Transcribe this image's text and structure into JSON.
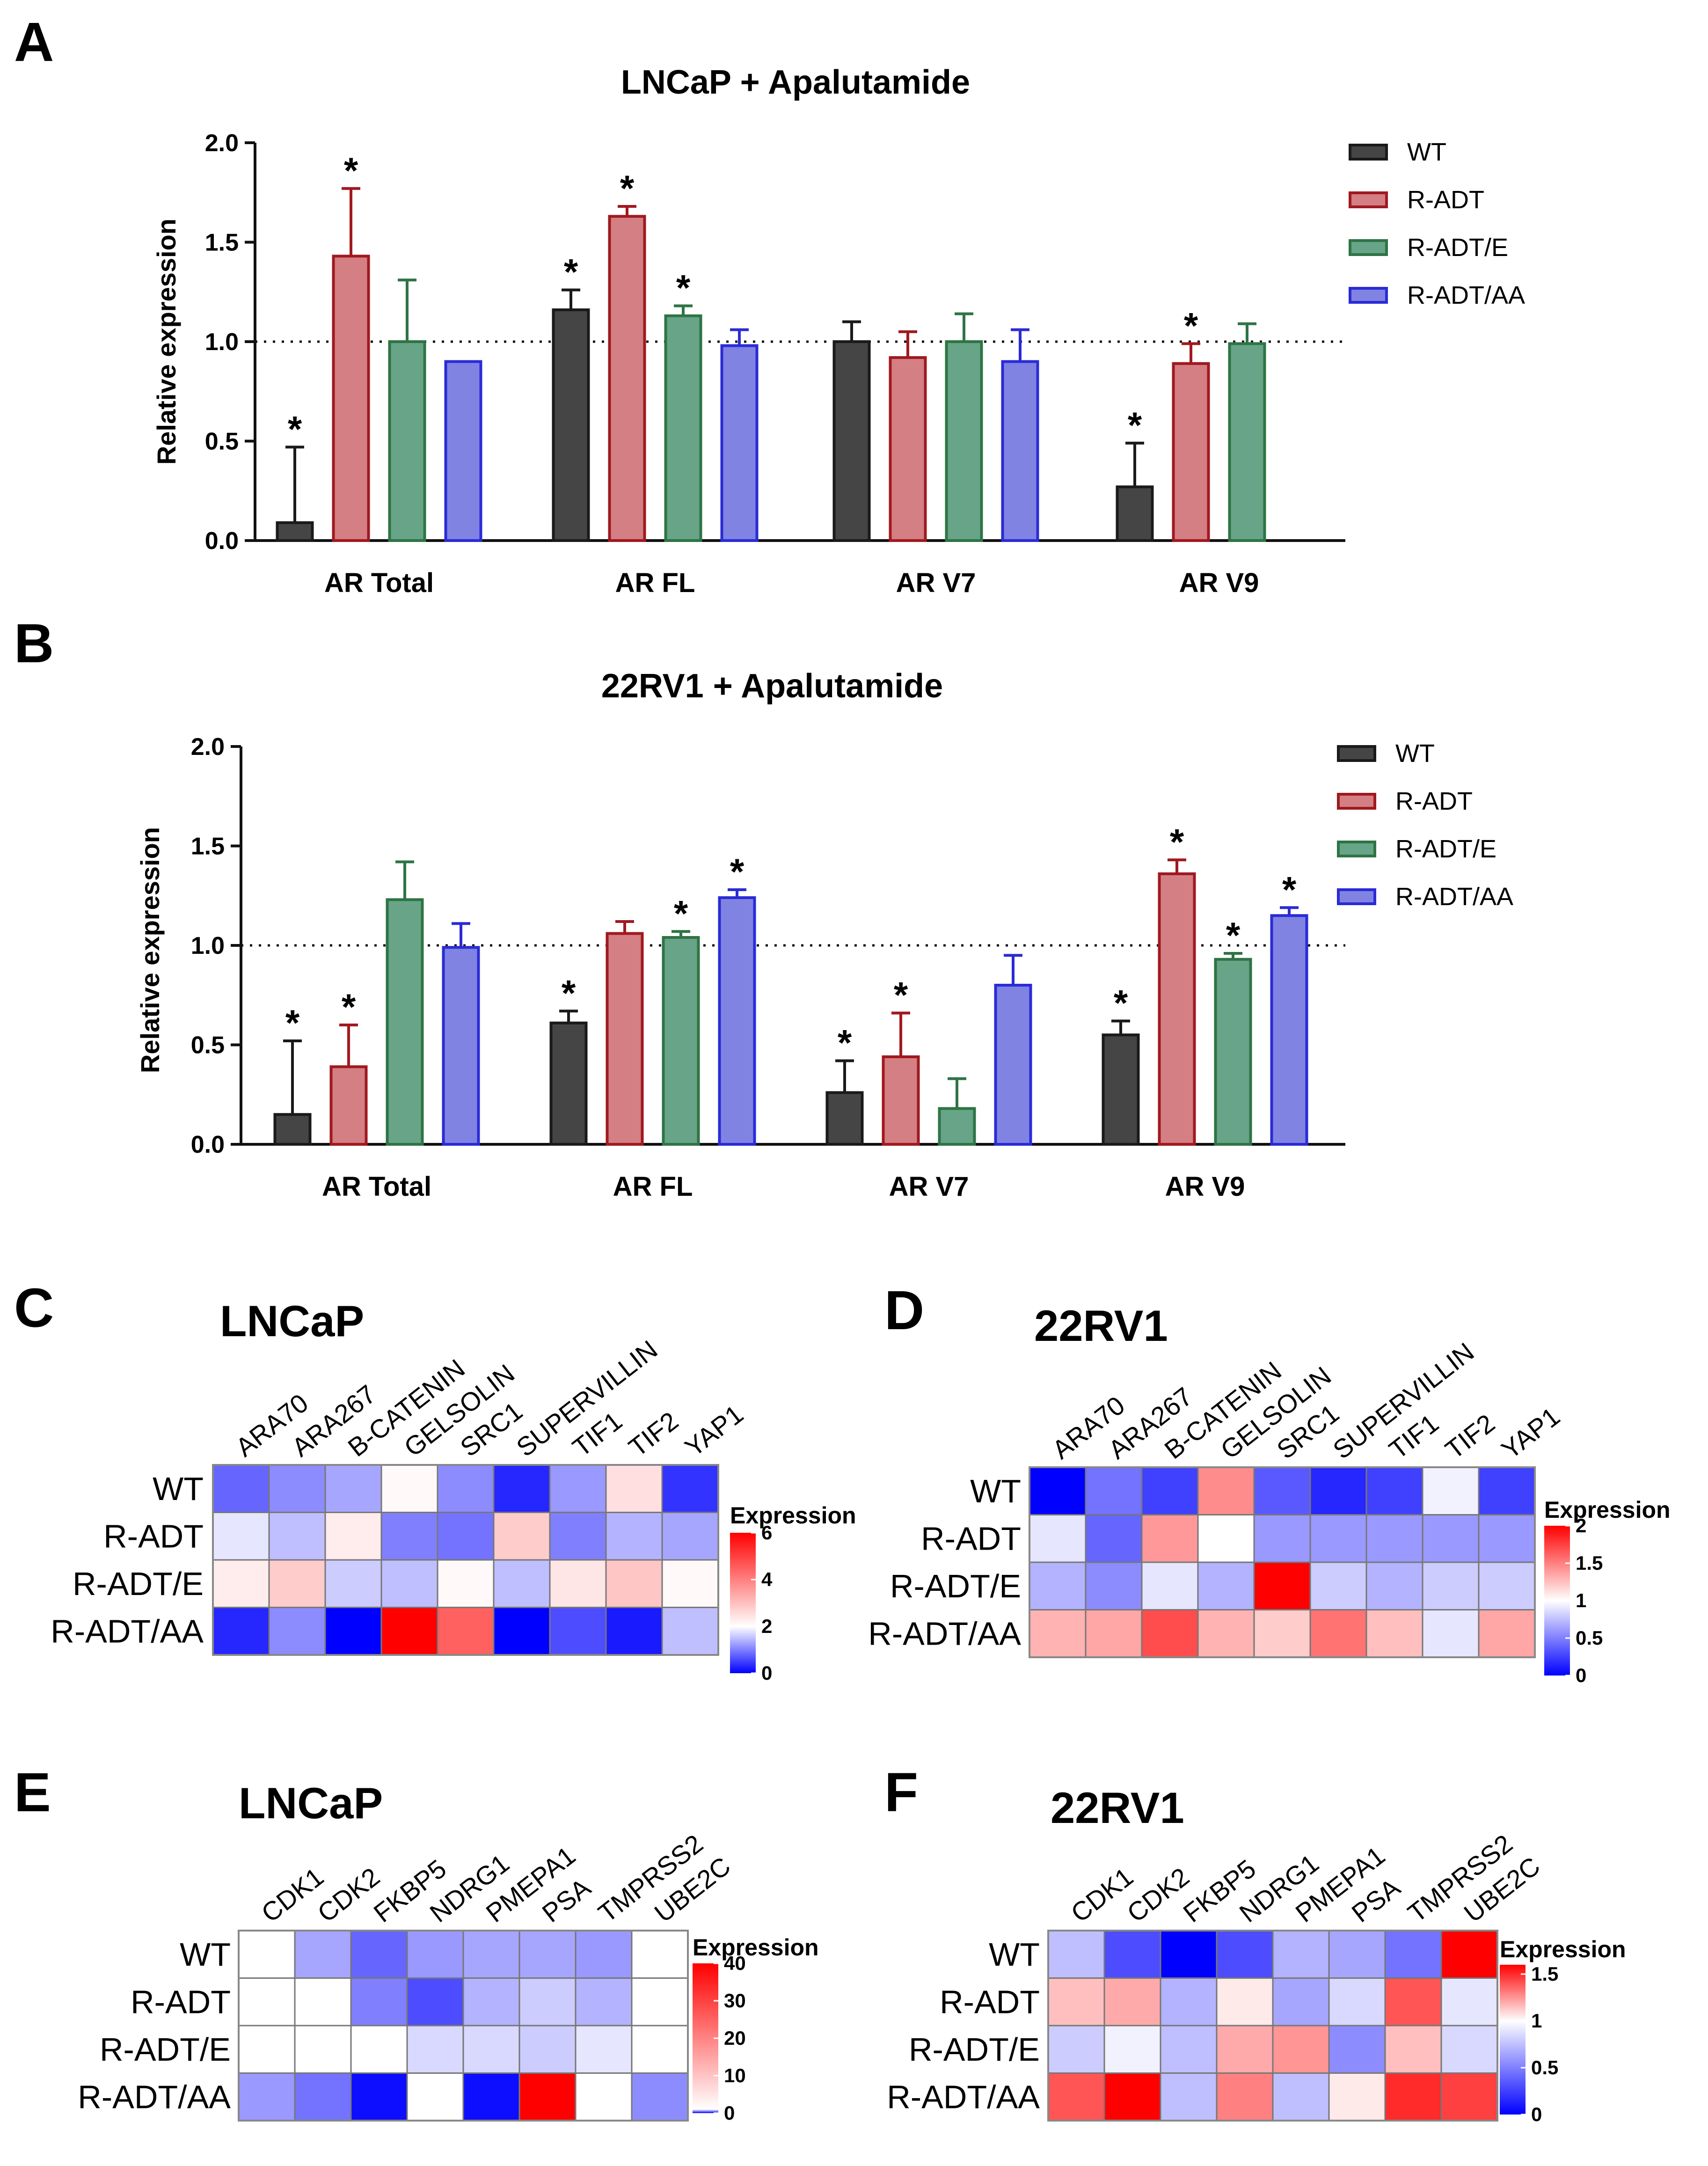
{
  "figure": {
    "series_colors": {
      "WT": {
        "fill": "#454545",
        "stroke": "#1a1a1a"
      },
      "R-ADT": {
        "fill": "#d37f84",
        "stroke": "#a0191f"
      },
      "R-ADT/E": {
        "fill": "#68a488",
        "stroke": "#2e7445"
      },
      "R-ADT/AA": {
        "fill": "#8183e2",
        "stroke": "#2a2bd6"
      }
    },
    "heatmap_colors": {
      "low": "#0000ff",
      "mid": "#ffffff",
      "high": "#ff0000"
    }
  },
  "chart_data": [
    {
      "panel": "A",
      "type": "bar",
      "title": "LNCaP + Apalutamide",
      "xlabel": "",
      "ylabel": "Relative expression",
      "ylim": [
        0,
        2.0
      ],
      "yticks": [
        "0.0",
        "0.5",
        "1.0",
        "1.5",
        "2.0"
      ],
      "reference_line": 1.0,
      "legend_position": "top-right",
      "categories": [
        "AR Total",
        "AR FL",
        "AR V7",
        "AR V9"
      ],
      "series": [
        {
          "name": "WT",
          "values": [
            0.09,
            1.16,
            1.0,
            0.27
          ],
          "errors": [
            0.38,
            0.1,
            0.1,
            0.22
          ],
          "significant": [
            true,
            true,
            false,
            true
          ]
        },
        {
          "name": "R-ADT",
          "values": [
            1.43,
            1.63,
            0.92,
            0.89
          ],
          "errors": [
            0.34,
            0.05,
            0.13,
            0.1
          ],
          "significant": [
            true,
            true,
            false,
            true
          ]
        },
        {
          "name": "R-ADT/E",
          "values": [
            1.0,
            1.13,
            1.0,
            0.99
          ],
          "errors": [
            0.31,
            0.05,
            0.14,
            0.1
          ],
          "significant": [
            false,
            true,
            false,
            false
          ]
        },
        {
          "name": "R-ADT/AA",
          "values": [
            0.9,
            0.98,
            0.9,
            null
          ],
          "errors": [
            0.0,
            0.08,
            0.16,
            null
          ],
          "significant": [
            false,
            false,
            false,
            false
          ]
        }
      ],
      "significance_marker": "*"
    },
    {
      "panel": "B",
      "type": "bar",
      "title": "22RV1 + Apalutamide",
      "xlabel": "",
      "ylabel": "Relative expression",
      "ylim": [
        0,
        2.0
      ],
      "yticks": [
        "0.0",
        "0.5",
        "1.0",
        "1.5",
        "2.0"
      ],
      "reference_line": 1.0,
      "legend_position": "top-right",
      "categories": [
        "AR Total",
        "AR FL",
        "AR V7",
        "AR V9"
      ],
      "series": [
        {
          "name": "WT",
          "values": [
            0.15,
            0.61,
            0.26,
            0.55
          ],
          "errors": [
            0.37,
            0.06,
            0.16,
            0.07
          ],
          "significant": [
            true,
            true,
            true,
            true
          ]
        },
        {
          "name": "R-ADT",
          "values": [
            0.39,
            1.06,
            0.44,
            1.36
          ],
          "errors": [
            0.21,
            0.06,
            0.22,
            0.07
          ],
          "significant": [
            true,
            false,
            true,
            true
          ]
        },
        {
          "name": "R-ADT/E",
          "values": [
            1.23,
            1.04,
            0.18,
            0.93
          ],
          "errors": [
            0.19,
            0.03,
            0.15,
            0.03
          ],
          "significant": [
            false,
            true,
            false,
            true
          ]
        },
        {
          "name": "R-ADT/AA",
          "values": [
            0.99,
            1.24,
            0.8,
            1.15
          ],
          "errors": [
            0.12,
            0.04,
            0.15,
            0.04
          ],
          "significant": [
            false,
            true,
            false,
            true
          ]
        }
      ],
      "significance_marker": "*"
    },
    {
      "panel": "C",
      "type": "heatmap",
      "title": "LNCaP",
      "columns": [
        "ARA70",
        "ARA267",
        "B-CATENIN",
        "GELSOLIN",
        "SRC1",
        "SUPERVILLIN",
        "TIF1",
        "TIF2",
        "YAP1"
      ],
      "rows": [
        "WT",
        "R-ADT",
        "R-ADT/E",
        "R-ADT/AA"
      ],
      "values": [
        [
          0.8,
          1.1,
          1.3,
          2.1,
          1.1,
          0.3,
          1.2,
          2.5,
          0.4
        ],
        [
          1.8,
          1.5,
          2.3,
          1.0,
          0.9,
          2.8,
          1.0,
          1.4,
          1.3
        ],
        [
          2.3,
          2.8,
          1.6,
          1.5,
          2.1,
          1.5,
          2.4,
          2.9,
          2.1
        ],
        [
          0.3,
          1.1,
          0.0,
          6.0,
          4.5,
          0.0,
          0.6,
          0.2,
          1.5
        ]
      ],
      "colorbar": {
        "title": "Expression",
        "min": 0,
        "mid": 2,
        "max": 6,
        "ticks": [
          "0",
          "2",
          "4",
          "6"
        ]
      }
    },
    {
      "panel": "D",
      "type": "heatmap",
      "title": "22RV1",
      "columns": [
        "ARA70",
        "ARA267",
        "B-CATENIN",
        "GELSOLIN",
        "SRC1",
        "SUPERVILLIN",
        "TIF1",
        "TIF2",
        "YAP1"
      ],
      "rows": [
        "WT",
        "R-ADT",
        "R-ADT/E",
        "R-ADT/AA"
      ],
      "values": [
        [
          0.0,
          0.45,
          0.25,
          1.45,
          0.35,
          0.15,
          0.25,
          0.95,
          0.25
        ],
        [
          0.9,
          0.4,
          1.4,
          1.0,
          0.6,
          0.6,
          0.6,
          0.6,
          0.6
        ],
        [
          0.7,
          0.55,
          0.9,
          0.7,
          2.0,
          0.8,
          0.7,
          0.8,
          0.8
        ],
        [
          1.3,
          1.35,
          1.7,
          1.3,
          1.2,
          1.55,
          1.25,
          0.9,
          1.35
        ]
      ],
      "colorbar": {
        "title": "Expression",
        "min": 0,
        "mid": 1,
        "max": 2,
        "ticks": [
          "0",
          "0.5",
          "1",
          "1.5",
          "2"
        ]
      }
    },
    {
      "panel": "E",
      "type": "heatmap",
      "title": "LNCaP",
      "columns": [
        "CDK1",
        "CDK2",
        "FKBP5",
        "NDRG1",
        "PMEPA1",
        "PSA",
        "TMPRSS2",
        "UBE2C"
      ],
      "rows": [
        "WT",
        "R-ADT",
        "R-ADT/E",
        "R-ADT/AA"
      ],
      "values": [
        [
          1.0,
          0.65,
          0.4,
          0.6,
          0.65,
          0.65,
          0.6,
          1.0
        ],
        [
          1.0,
          1.0,
          0.5,
          0.3,
          0.7,
          0.8,
          0.7,
          1.0
        ],
        [
          1.0,
          1.0,
          1.0,
          0.85,
          0.85,
          0.8,
          0.9,
          1.0
        ],
        [
          0.6,
          0.45,
          0.05,
          1.0,
          0.05,
          40,
          1.0,
          0.55
        ]
      ],
      "colorbar": {
        "title": "Expression",
        "min": 0,
        "mid": 1,
        "max": 40,
        "ticks": [
          "0",
          "10",
          "20",
          "30",
          "40"
        ]
      }
    },
    {
      "panel": "F",
      "type": "heatmap",
      "title": "22RV1",
      "columns": [
        "CDK1",
        "CDK2",
        "FKBP5",
        "NDRG1",
        "PMEPA1",
        "PSA",
        "TMPRSS2",
        "UBE2C"
      ],
      "rows": [
        "WT",
        "R-ADT",
        "R-ADT/E",
        "R-ADT/AA"
      ],
      "values": [
        [
          0.75,
          0.3,
          0.0,
          0.3,
          0.7,
          0.65,
          0.45,
          1.6
        ],
        [
          1.15,
          1.2,
          0.7,
          1.05,
          0.65,
          0.85,
          1.4,
          0.9
        ],
        [
          0.8,
          0.95,
          0.75,
          1.2,
          1.25,
          0.55,
          1.15,
          0.85
        ],
        [
          1.4,
          1.65,
          0.75,
          1.3,
          0.75,
          1.05,
          1.5,
          1.45
        ]
      ],
      "colorbar": {
        "title": "Expression",
        "min": 0,
        "mid": 1,
        "max": 1.6,
        "ticks": [
          "0",
          "0.5",
          "1",
          "1.5"
        ]
      }
    }
  ]
}
